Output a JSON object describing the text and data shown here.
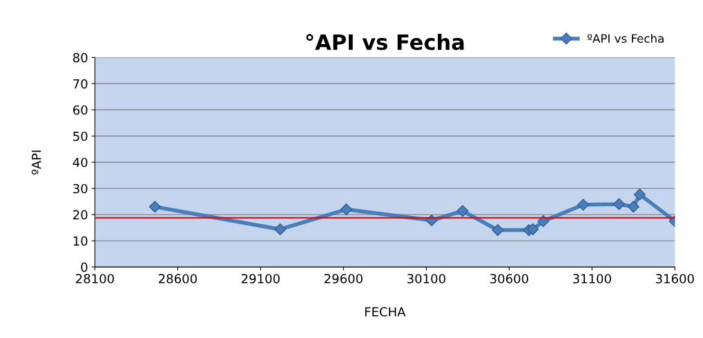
{
  "chart_data": {
    "type": "line",
    "title": "°API vs Fecha",
    "xlabel": "FECHA",
    "ylabel": "ºAPI",
    "xlim": [
      28100,
      31600
    ],
    "xticks": [
      28100,
      28600,
      29100,
      29600,
      30100,
      30600,
      31100,
      31600
    ],
    "ylim": [
      0,
      80
    ],
    "yticks": [
      0,
      10,
      20,
      30,
      40,
      50,
      60,
      70,
      80
    ],
    "series": [
      {
        "name": "ºAPI vs Fecha",
        "color": "#4a7ebb",
        "x": [
          28462,
          29218,
          29617,
          30132,
          30319,
          30531,
          30719,
          30743,
          30806,
          31047,
          31263,
          31350,
          31388,
          31600
        ],
        "values": [
          23.0,
          14.4,
          22.0,
          17.8,
          21.4,
          14.1,
          14.1,
          14.4,
          17.5,
          23.8,
          24.0,
          23.0,
          27.7,
          17.5
        ]
      }
    ],
    "ref_lines": [
      {
        "axis": "y",
        "value": 18.8,
        "color": "#e00000",
        "line_style": "solid"
      }
    ],
    "grid": "y",
    "legend": "top right",
    "marker": "diamond",
    "line_style": "solid"
  }
}
